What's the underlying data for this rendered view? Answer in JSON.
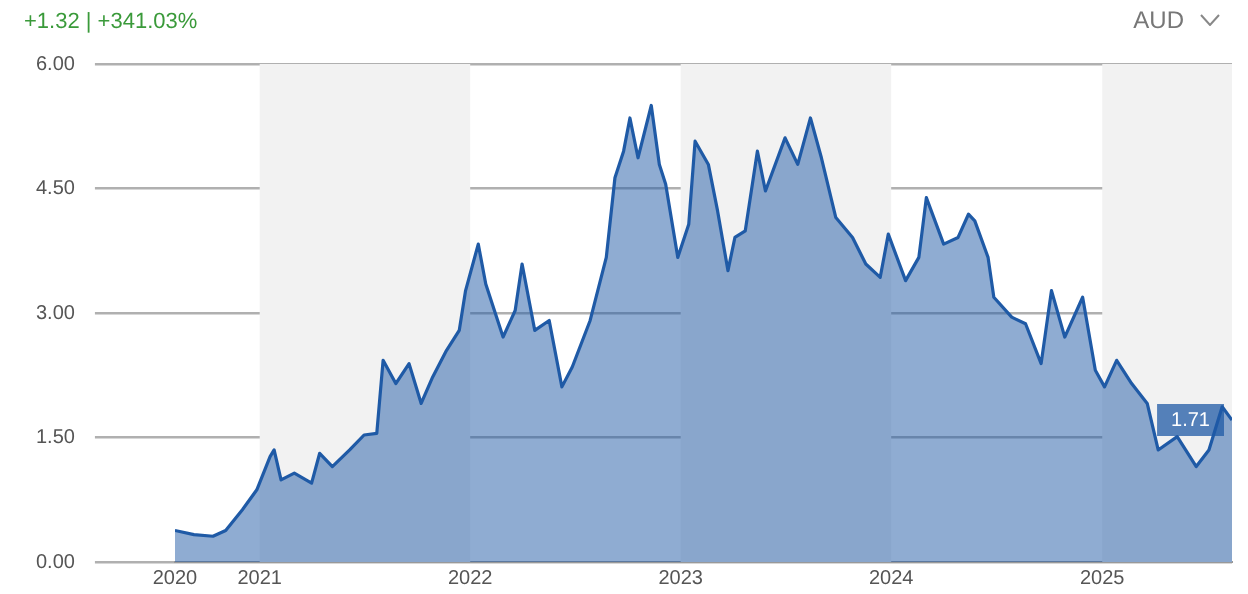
{
  "chart_data": {
    "type": "area",
    "annotations": [
      "+1.32 | +341.03%",
      "AUD",
      {
        "text": "1.71",
        "x": "2025-08-14",
        "y": 1.71
      }
    ],
    "x": [
      "2020-08-07",
      "2020-09-09",
      "2020-10-12",
      "2020-11-03",
      "2020-12-02",
      "2020-12-27",
      "2021-01-19",
      "2021-01-26",
      "2021-02-07",
      "2021-03-02",
      "2021-04-01",
      "2021-04-15",
      "2021-05-07",
      "2021-06-06",
      "2021-07-01",
      "2021-07-23",
      "2021-08-03",
      "2021-08-25",
      "2021-09-17",
      "2021-10-08",
      "2021-10-28",
      "2021-11-21",
      "2021-12-13",
      "2021-12-24",
      "2022-01-15",
      "2022-01-28",
      "2022-02-27",
      "2022-03-20",
      "2022-04-01",
      "2022-04-23",
      "2022-05-18",
      "2022-06-09",
      "2022-06-27",
      "2022-07-28",
      "2022-08-25",
      "2022-09-09",
      "2022-09-24",
      "2022-10-05",
      "2022-10-19",
      "2022-11-11",
      "2022-11-25",
      "2022-12-06",
      "2022-12-27",
      "2023-01-15",
      "2023-01-26",
      "2023-02-18",
      "2023-03-06",
      "2023-03-24",
      "2023-04-05",
      "2023-04-23",
      "2023-05-14",
      "2023-05-28",
      "2023-07-01",
      "2023-07-23",
      "2023-08-14",
      "2023-09-02",
      "2023-09-27",
      "2023-10-26",
      "2023-11-18",
      "2023-12-13",
      "2023-12-27",
      "2024-01-26",
      "2024-02-18",
      "2024-03-02",
      "2024-04-01",
      "2024-04-26",
      "2024-05-14",
      "2024-05-25",
      "2024-06-17",
      "2024-06-27",
      "2024-07-28",
      "2024-08-21",
      "2024-09-17",
      "2024-10-05",
      "2024-10-28",
      "2024-11-28",
      "2024-12-20",
      "2025-01-05",
      "2025-01-26",
      "2025-02-21",
      "2025-03-20",
      "2025-04-08",
      "2025-05-11",
      "2025-06-13",
      "2025-07-05",
      "2025-07-28",
      "2025-08-14"
    ],
    "series": [
      {
        "color": "#1f5aa6",
        "values": [
          0.38,
          0.33,
          0.31,
          0.38,
          0.63,
          0.87,
          1.27,
          1.35,
          0.99,
          1.07,
          0.95,
          1.31,
          1.15,
          1.35,
          1.53,
          1.55,
          2.43,
          2.15,
          2.39,
          1.91,
          2.23,
          2.55,
          2.79,
          3.27,
          3.83,
          3.35,
          2.71,
          3.03,
          3.59,
          2.79,
          2.91,
          2.11,
          2.35,
          2.91,
          3.67,
          4.63,
          4.95,
          5.35,
          4.87,
          5.5,
          4.79,
          4.55,
          3.67,
          4.07,
          5.07,
          4.79,
          4.23,
          3.51,
          3.91,
          3.99,
          4.95,
          4.47,
          5.11,
          4.79,
          5.35,
          4.87,
          4.15,
          3.91,
          3.59,
          3.43,
          3.95,
          3.39,
          3.67,
          4.39,
          3.83,
          3.91,
          4.19,
          4.11,
          3.67,
          3.19,
          2.95,
          2.87,
          2.39,
          3.27,
          2.71,
          3.19,
          2.31,
          2.11,
          2.43,
          2.15,
          1.91,
          1.35,
          1.51,
          1.15,
          1.35,
          1.87,
          1.71
        ]
      }
    ],
    "xlim": [
      "2020-08-07",
      "2025-08-14"
    ],
    "xticks": [
      {
        "value": "2020-08-07",
        "label": "2020"
      },
      "2021",
      "2022",
      "2023",
      "2024",
      "2025"
    ],
    "ylim": [
      0,
      6
    ],
    "yticks": [
      {
        "value": 0,
        "label": "0.00"
      },
      {
        "value": 1.5,
        "label": "1.50"
      },
      {
        "value": 3,
        "label": "3.00"
      },
      {
        "value": 4.5,
        "label": "4.50"
      },
      {
        "value": 6,
        "label": "6.00"
      }
    ],
    "bands": [
      {
        "axis": "x",
        "from": "2021",
        "to": "2022",
        "color": "#f2f2f2"
      },
      {
        "axis": "x",
        "from": "2023",
        "to": "2024",
        "color": "#f2f2f2"
      },
      {
        "axis": "x",
        "from": "2025",
        "to": "2025-08-14",
        "color": "#f2f2f2"
      }
    ],
    "grid": "y",
    "legend": false
  }
}
